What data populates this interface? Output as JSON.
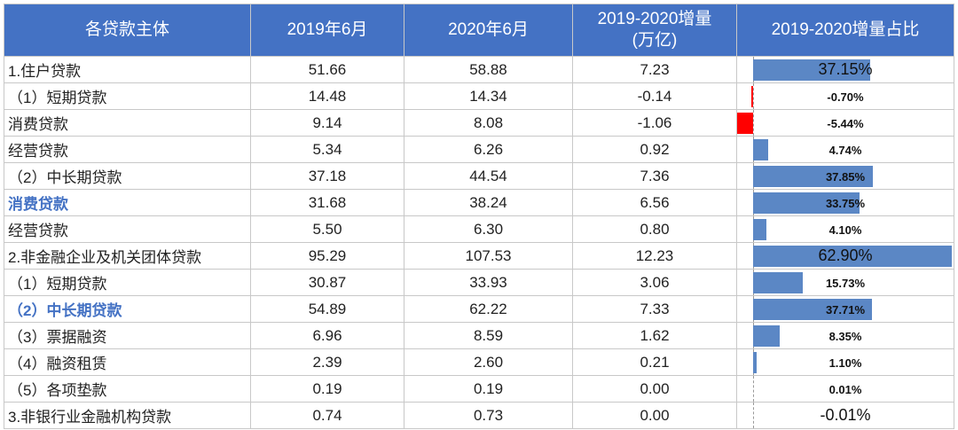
{
  "table": {
    "header": [
      "各贷款主体",
      "2019年6月",
      "2020年6月",
      "2019-2020增量\n(万亿)",
      "2019-2020增量占比"
    ],
    "positive_color": "#5b87c5",
    "negative_color": "#ff0000",
    "rows": [
      [
        "1.住户贷款",
        "51.66",
        "58.88",
        "7.23",
        {
          "value": 37.15,
          "label": "37.15%"
        }
      ],
      [
        "（1）短期贷款",
        "14.48",
        "14.34",
        "-0.14",
        {
          "value": -0.7,
          "label": "-0.70%"
        }
      ],
      [
        "消费贷款",
        "9.14",
        "8.08",
        "-1.06",
        {
          "value": -5.44,
          "label": "-5.44%"
        }
      ],
      [
        "经营贷款",
        "5.34",
        "6.26",
        "0.92",
        {
          "value": 4.74,
          "label": "4.74%"
        }
      ],
      [
        "（2）中长期贷款",
        "37.18",
        "44.54",
        "7.36",
        {
          "value": 37.85,
          "label": "37.85%"
        }
      ],
      [
        "消费贷款",
        "31.68",
        "38.24",
        "6.56",
        {
          "value": 33.75,
          "label": "33.75%"
        }
      ],
      [
        "经营贷款",
        "5.50",
        "6.30",
        "0.80",
        {
          "value": 4.1,
          "label": "4.10%"
        }
      ],
      [
        "2.非金融企业及机关团体贷款",
        "95.29",
        "107.53",
        "12.23",
        {
          "value": 62.9,
          "label": "62.90%"
        }
      ],
      [
        "（1）短期贷款",
        "30.87",
        "33.93",
        "3.06",
        {
          "value": 15.73,
          "label": "15.73%"
        }
      ],
      [
        "（2）中长期贷款",
        "54.89",
        "62.22",
        "7.33",
        {
          "value": 37.71,
          "label": "37.71%"
        }
      ],
      [
        "（3）票据融资",
        "6.96",
        "8.59",
        "1.62",
        {
          "value": 8.35,
          "label": "8.35%"
        }
      ],
      [
        "（4）融资租赁",
        "2.39",
        "2.60",
        "0.21",
        {
          "value": 1.1,
          "label": "1.10%"
        }
      ],
      [
        "（5）各项垫款",
        "0.19",
        "0.19",
        "0.00",
        {
          "value": 0.01,
          "label": "0.01%"
        }
      ],
      [
        "3.非银行业金融机构贷款",
        "0.74",
        "0.73",
        "0.00",
        {
          "value": -0.01,
          "label": "-0.01%"
        }
      ]
    ]
  }
}
